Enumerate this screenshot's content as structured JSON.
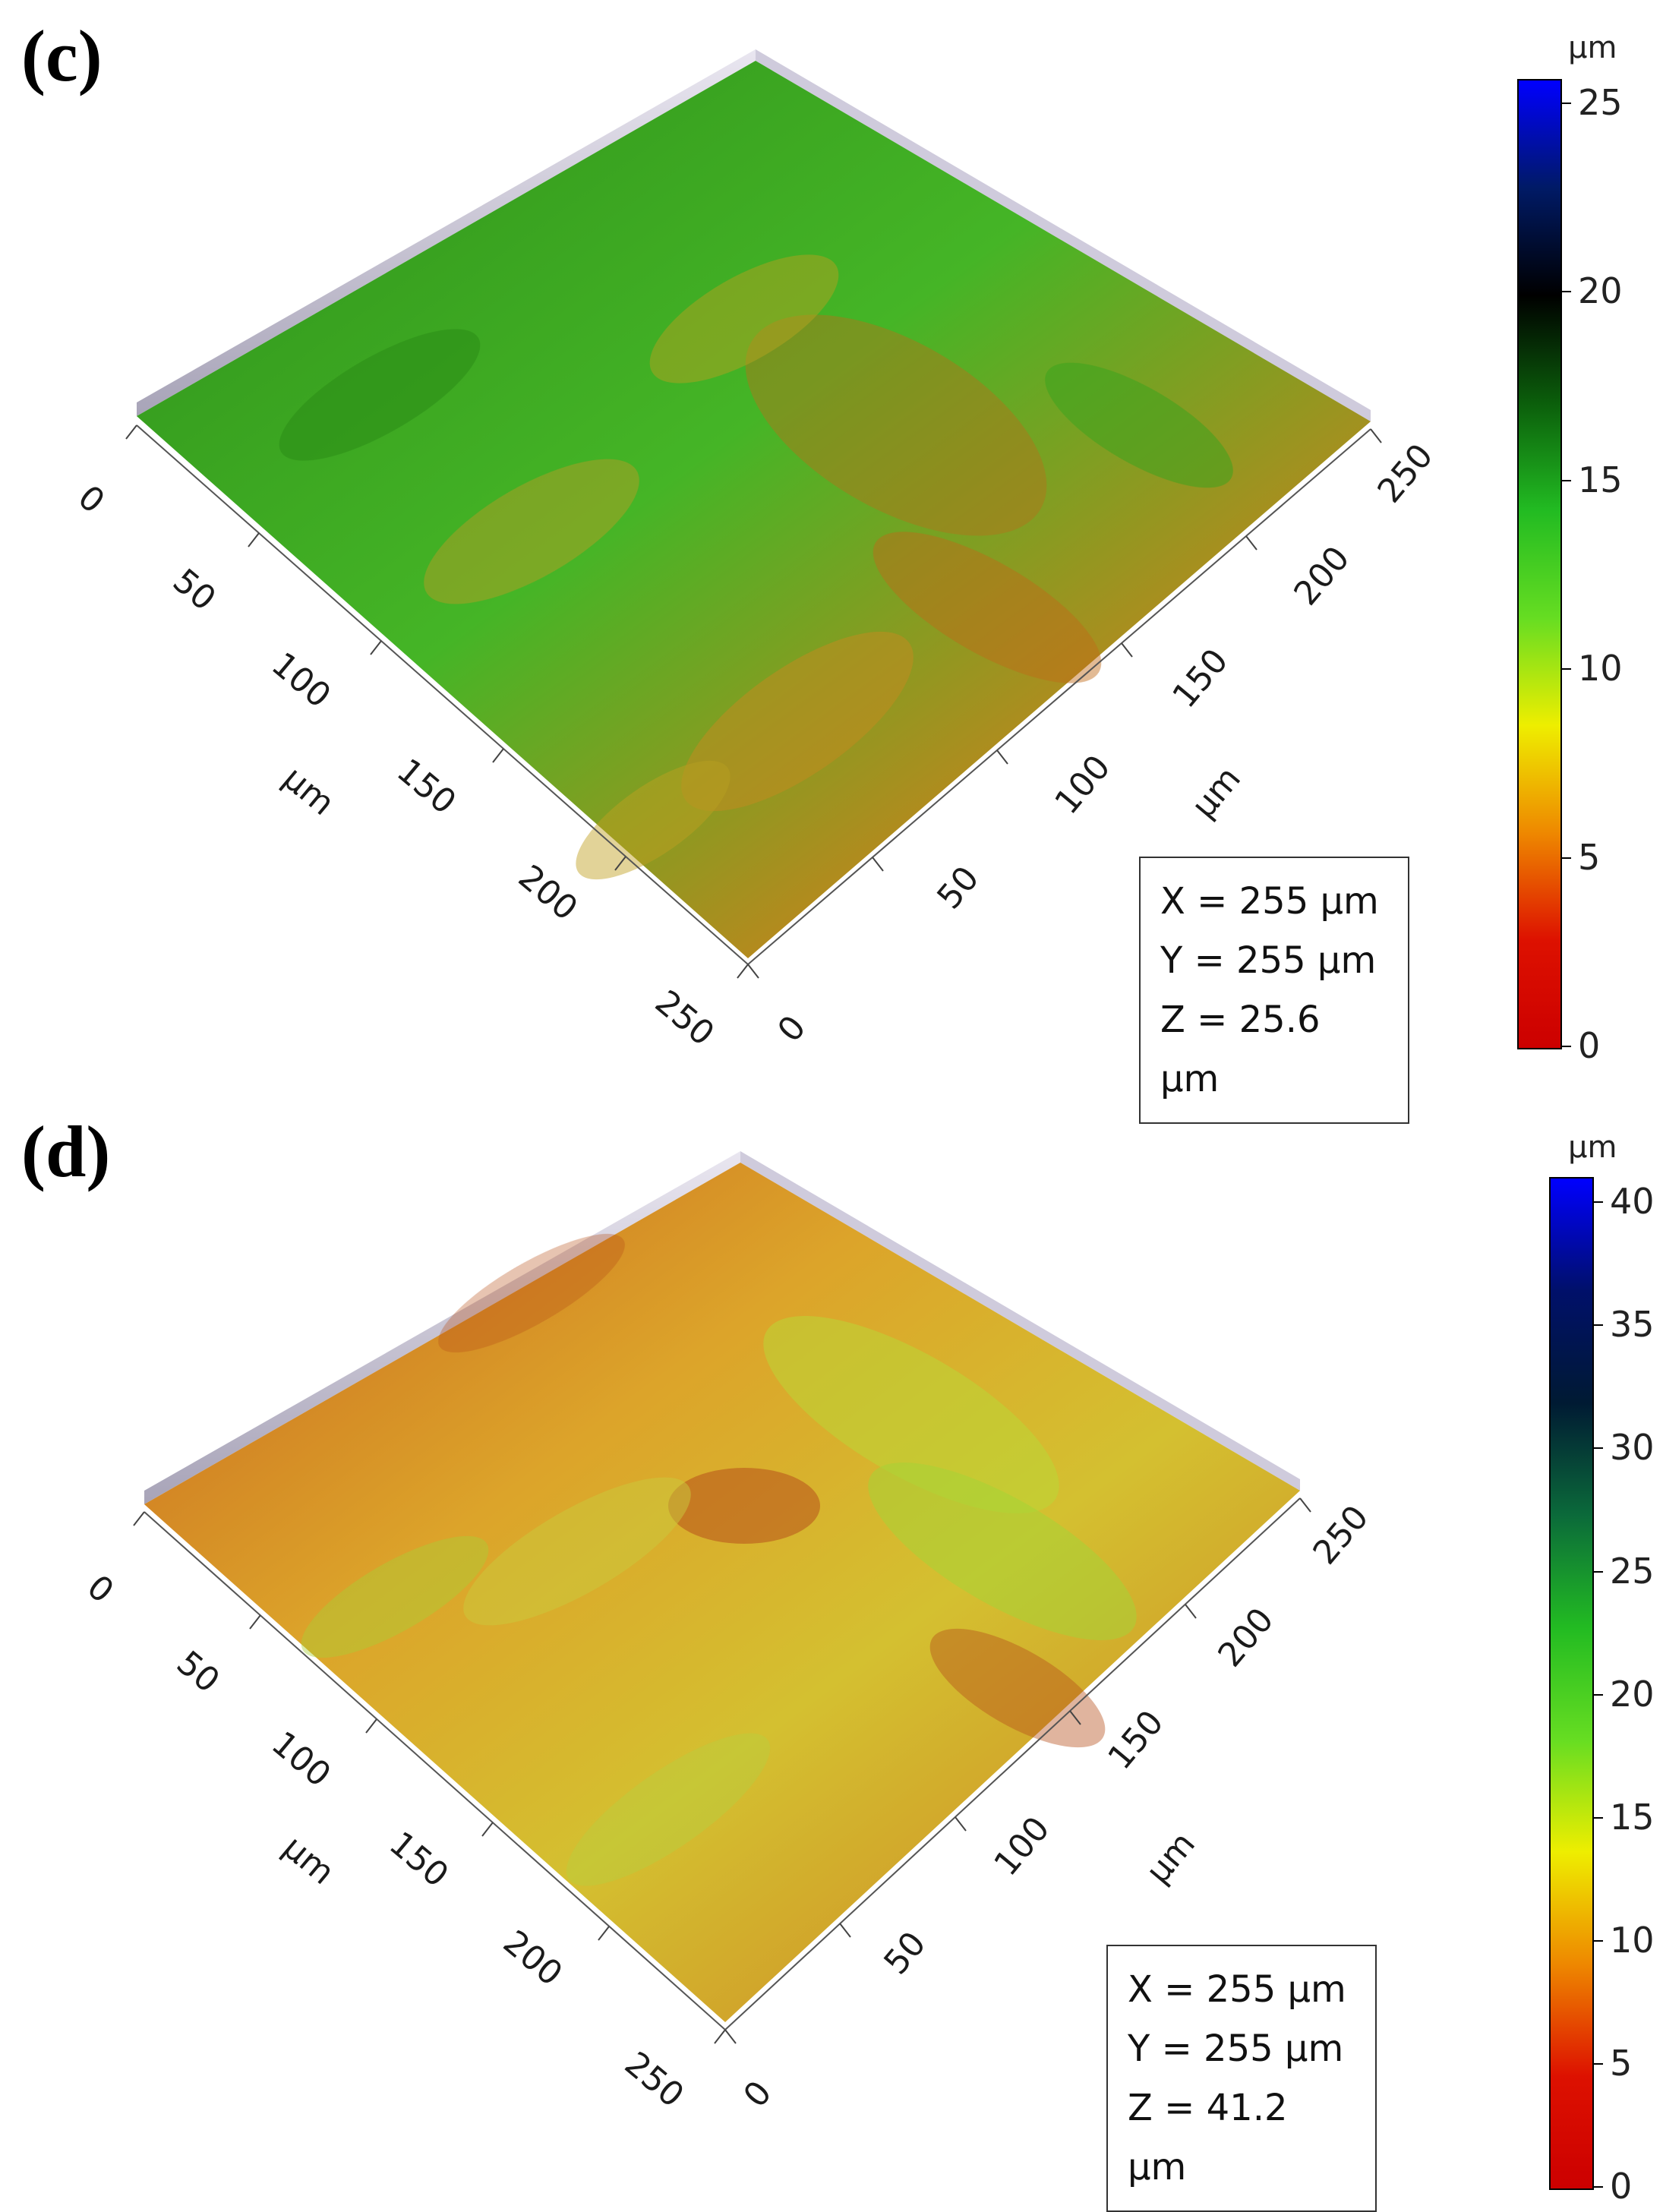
{
  "panels": [
    {
      "label": "(c)",
      "colorbar": {
        "unit": "µm",
        "ticks": [
          "25",
          "20",
          "15",
          "10",
          "5",
          "0"
        ],
        "stops": [
          "#0000ff",
          "#001a66",
          "#000000",
          "#0b5e0b",
          "#22bb22",
          "#66dd22",
          "#eeee00",
          "#ee8800",
          "#dd1100",
          "#cc0000"
        ]
      },
      "info": {
        "x": "X  = 255 µm",
        "y": "Y  = 255 µm",
        "z": "Z  = 25.6 µm"
      },
      "axis_left": {
        "ticks": [
          "0",
          "50",
          "100",
          "150",
          "200",
          "250"
        ],
        "unit": "µm"
      },
      "axis_right": {
        "ticks": [
          "0",
          "50",
          "100",
          "150",
          "200",
          "250"
        ],
        "unit": "µm"
      },
      "surface_colors": {
        "main": "#3fa820",
        "secondary": "#c8a020",
        "low": "#c0501a"
      }
    },
    {
      "label": "(d)",
      "colorbar": {
        "unit": "µm",
        "ticks": [
          "40",
          "35",
          "30",
          "25",
          "20",
          "15",
          "10",
          "5",
          "0"
        ],
        "stops": [
          "#0000ff",
          "#00106a",
          "#001a33",
          "#0b6a3a",
          "#22bb22",
          "#66dd22",
          "#eeee00",
          "#ee8800",
          "#dd1100",
          "#cc0000"
        ]
      },
      "info": {
        "x": "X  = 255 µm",
        "y": "Y  = 255 µm",
        "z": "Z  = 41.2 µm"
      },
      "axis_left": {
        "ticks": [
          "0",
          "50",
          "100",
          "150",
          "200",
          "250"
        ],
        "unit": "µm"
      },
      "axis_right": {
        "ticks": [
          "0",
          "50",
          "100",
          "150",
          "200",
          "250"
        ],
        "unit": "µm"
      },
      "surface_colors": {
        "main": "#d88a25",
        "secondary": "#c8d030",
        "low": "#b04a18"
      }
    }
  ]
}
